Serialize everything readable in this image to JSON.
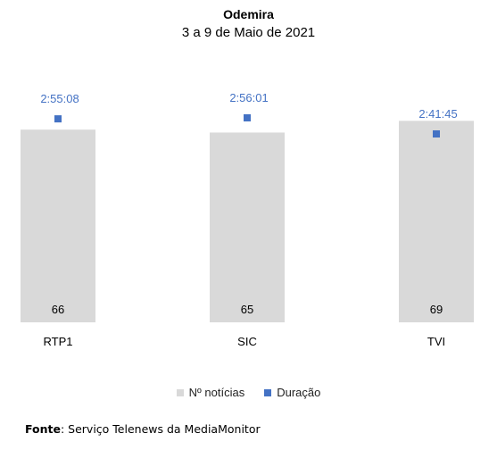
{
  "chart_data": {
    "type": "bar",
    "title": "Odemira",
    "subtitle": "3 a 9 de Maio de 2021",
    "categories": [
      "RTP1",
      "SIC",
      "TVI"
    ],
    "series": [
      {
        "name": "Nº notícias",
        "kind": "bar",
        "values": [
          66,
          65,
          69
        ],
        "labels": [
          "66",
          "65",
          "69"
        ]
      },
      {
        "name": "Duração",
        "kind": "marker",
        "values": [
          10508,
          10561,
          9705
        ],
        "labels": [
          "2:55:08",
          "2:56:01",
          "2:41:45"
        ]
      }
    ],
    "ylim": [
      0,
      75
    ],
    "grid": false,
    "legend_position": "bottom",
    "colors": {
      "bar": "#d9d9d9",
      "marker": "#4472c4",
      "duration_label": "#4472c4"
    }
  },
  "source": {
    "label": "Fonte",
    "text": ": Serviço Telenews da MediaMonitor"
  }
}
